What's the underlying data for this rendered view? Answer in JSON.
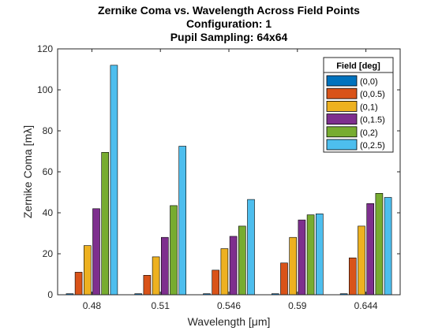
{
  "chart_data": {
    "type": "bar",
    "title_lines": [
      "Zernike Coma vs. Wavelength Across Field Points",
      "Configuration: 1",
      "Pupil Sampling: 64x64"
    ],
    "xlabel": "Wavelength [μm]",
    "ylabel": "Zernike Coma [mλ]",
    "categories": [
      "0.48",
      "0.51",
      "0.546",
      "0.59",
      "0.644"
    ],
    "ylim": [
      0,
      120
    ],
    "yticks": [
      0,
      20,
      40,
      60,
      80,
      100,
      120
    ],
    "legend_title": "Field [deg]",
    "legend_position": "top-right",
    "grid": false,
    "series": [
      {
        "name": "(0,0)",
        "color": "#0072BD",
        "values": [
          0.5,
          0.5,
          0.5,
          0.5,
          0.5
        ]
      },
      {
        "name": "(0,0.5)",
        "color": "#D95319",
        "values": [
          11,
          9.5,
          12,
          15.5,
          18
        ]
      },
      {
        "name": "(0,1)",
        "color": "#EDB120",
        "values": [
          24,
          18.5,
          22.5,
          28,
          33.5
        ]
      },
      {
        "name": "(0,1.5)",
        "color": "#7E2F8E",
        "values": [
          42,
          28,
          28.5,
          36.5,
          44.5
        ]
      },
      {
        "name": "(0,2)",
        "color": "#77AC30",
        "values": [
          69.5,
          43.5,
          33.5,
          39,
          49.5
        ]
      },
      {
        "name": "(0,2.5)",
        "color": "#4DBEEE",
        "values": [
          112,
          72.5,
          46.5,
          39.5,
          47.5
        ]
      }
    ]
  }
}
